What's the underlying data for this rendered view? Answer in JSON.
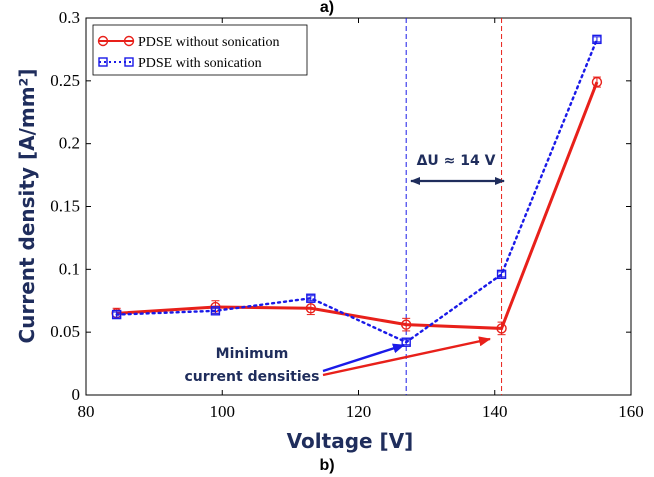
{
  "panel_labels": {
    "top": "a)",
    "bottom": "b)"
  },
  "colors": {
    "series_red": "#e8201a",
    "series_blue": "#1a1ae8",
    "axis_text": "#1f2d5c",
    "annot_arrow": "#1f2d5c"
  },
  "chart_data": {
    "type": "line",
    "title": "",
    "xlabel": "Voltage [V]",
    "ylabel": "Current density [A/mm²]",
    "xlim": [
      80,
      160
    ],
    "ylim": [
      0,
      0.3
    ],
    "xticks": [
      "80",
      "100",
      "120",
      "140",
      "160"
    ],
    "yticks": [
      "0",
      "0.05",
      "0.1",
      "0.15",
      "0.2",
      "0.25",
      "0.3"
    ],
    "grid": false,
    "legend_position": "top-left",
    "series": [
      {
        "name": "PDSE without sonication",
        "style": "solid",
        "marker": "circle",
        "color": "#e8201a",
        "x": [
          84.5,
          99,
          113,
          127,
          141,
          155
        ],
        "y": [
          0.065,
          0.07,
          0.069,
          0.056,
          0.053,
          0.249
        ],
        "err": [
          0.004,
          0.005,
          0.005,
          0.005,
          0.005,
          0.004
        ]
      },
      {
        "name": "PDSE with sonication",
        "style": "dotted",
        "marker": "square",
        "color": "#1a1ae8",
        "x": [
          84.5,
          99,
          113,
          127,
          141,
          155
        ],
        "y": [
          0.064,
          0.067,
          0.077,
          0.042,
          0.096,
          0.283
        ],
        "err": [
          0.002,
          0.002,
          0.002,
          0.002,
          0.002,
          0.002
        ]
      }
    ],
    "vlines": [
      {
        "x": 127,
        "color": "#1a1ae8"
      },
      {
        "x": 141,
        "color": "#e8201a"
      }
    ],
    "annotations": {
      "delta_u": "ΔU ≈ 14 V",
      "minimum_line1": "Minimum",
      "minimum_line2": "current densities"
    }
  }
}
